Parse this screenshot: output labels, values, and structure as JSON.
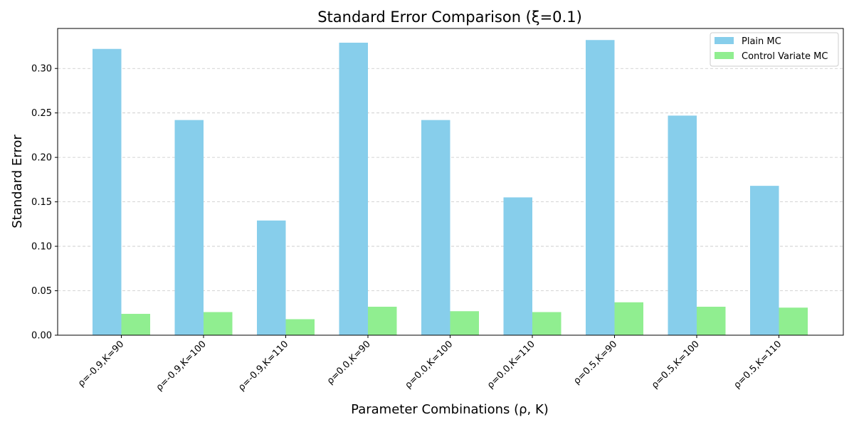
{
  "chart_data": {
    "type": "bar",
    "title": "Standard Error Comparison (ξ=0.1)",
    "xlabel": "Parameter Combinations (ρ, K)",
    "ylabel": "Standard Error",
    "categories": [
      "ρ=-0.9,K=90",
      "ρ=-0.9,K=100",
      "ρ=-0.9,K=110",
      "ρ=0.0,K=90",
      "ρ=0.0,K=100",
      "ρ=0.0,K=110",
      "ρ=0.5,K=90",
      "ρ=0.5,K=100",
      "ρ=0.5,K=110"
    ],
    "series": [
      {
        "name": "Plain MC",
        "color": "#87CEEB",
        "values": [
          0.322,
          0.242,
          0.129,
          0.329,
          0.242,
          0.155,
          0.332,
          0.247,
          0.168
        ]
      },
      {
        "name": "Control Variate MC",
        "color": "#90EE90",
        "values": [
          0.024,
          0.026,
          0.018,
          0.032,
          0.027,
          0.026,
          0.037,
          0.032,
          0.031
        ]
      }
    ],
    "ylim": [
      0,
      0.345
    ],
    "yticks": [
      0.0,
      0.05,
      0.1,
      0.15,
      0.2,
      0.25,
      0.3
    ],
    "ytick_labels": [
      "0.00",
      "0.05",
      "0.10",
      "0.15",
      "0.20",
      "0.25",
      "0.30"
    ],
    "grid": "y-dashed",
    "legend_position": "top-right"
  }
}
